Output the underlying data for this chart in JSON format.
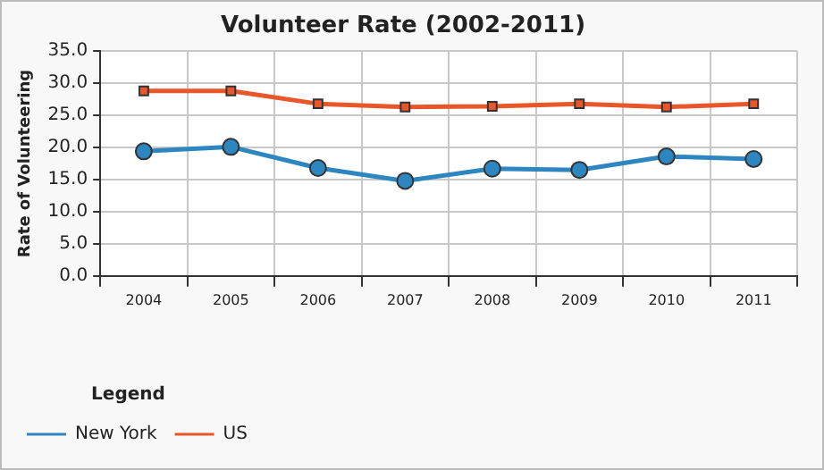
{
  "chart_data": {
    "type": "line",
    "title": "Volunteer Rate (2002-2011)",
    "ylabel": "Rate of Volunteering",
    "legend_title": "Legend",
    "categories": [
      "2004",
      "2005",
      "2006",
      "2007",
      "2008",
      "2009",
      "2010",
      "2011"
    ],
    "series": [
      {
        "name": "New York",
        "color": "#2e86c1",
        "marker": "circle",
        "values": [
          19.4,
          20.1,
          16.8,
          14.8,
          16.7,
          16.5,
          18.6,
          18.2
        ]
      },
      {
        "name": "US",
        "color": "#e8562a",
        "marker": "square",
        "values": [
          28.8,
          28.8,
          26.8,
          26.3,
          26.4,
          26.8,
          26.3,
          26.8
        ]
      }
    ],
    "ylim": [
      0,
      35
    ],
    "yticks": [
      {
        "value": 0,
        "label": "0.0"
      },
      {
        "value": 5,
        "label": "5.0"
      },
      {
        "value": 10,
        "label": "10.0"
      },
      {
        "value": 15,
        "label": "15.0"
      },
      {
        "value": 20,
        "label": "20.0"
      },
      {
        "value": 25,
        "label": "25.0"
      },
      {
        "value": 30,
        "label": "30.0"
      },
      {
        "value": 35,
        "label": "35.0"
      }
    ],
    "grid": true,
    "legend": "bottom",
    "line_style": "solid"
  }
}
